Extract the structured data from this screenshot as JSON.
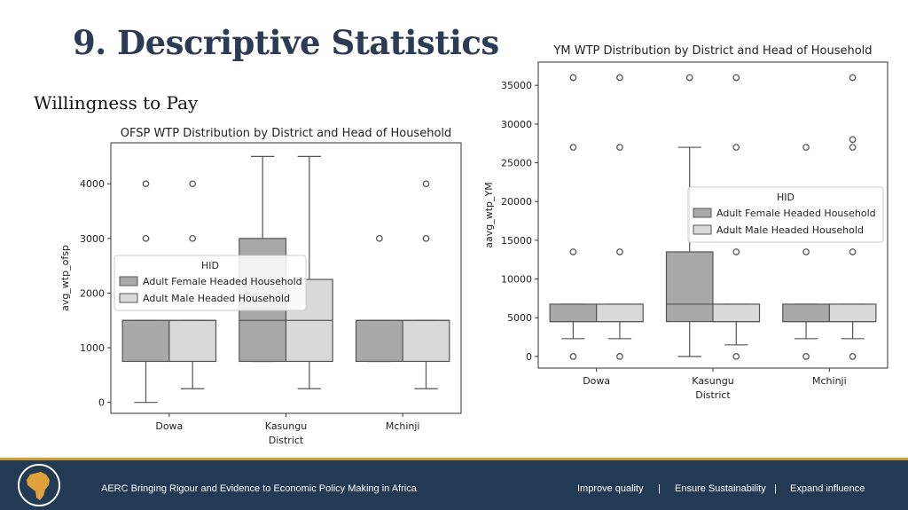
{
  "slide": {
    "title": "9. Descriptive Statistics",
    "subtitle": "Willingness to Pay"
  },
  "footer": {
    "logo_text": "AERC",
    "tagline": "AERC Bringing Rigour and Evidence to Economic Policy Making in Africa",
    "links": [
      "Improve quality",
      "|",
      "Ensure Sustainability",
      "|",
      "Expand influence"
    ]
  },
  "colors": {
    "female": "#a9a9a9",
    "male": "#d9d9d9",
    "footer_bg": "#233a55",
    "accent": "#d49a2f",
    "title": "#2b3a55"
  },
  "chart_data": [
    {
      "type": "box",
      "title": "OFSP WTP Distribution by District and Head of Household",
      "xlabel": "District",
      "ylabel": "avg_wtp_ofsp",
      "categories": [
        "Dowa",
        "Kasungu",
        "Mchinji"
      ],
      "ylim": [
        -200,
        4750
      ],
      "yticks": [
        0,
        1000,
        2000,
        3000,
        4000
      ],
      "legend": {
        "title": "HID",
        "position": "center-left"
      },
      "series": [
        {
          "name": "Adult Female Headed Household",
          "color": "#a9a9a9",
          "boxes": [
            {
              "whislo": 0,
              "q1": 750,
              "med": 1500,
              "q3": 1500,
              "whishi": 1500,
              "fliers": [
                3000,
                4000
              ]
            },
            {
              "whislo": 750,
              "q1": 750,
              "med": 1500,
              "q3": 3000,
              "whishi": 4500,
              "fliers": []
            },
            {
              "whislo": 750,
              "q1": 750,
              "med": 1500,
              "q3": 1500,
              "whishi": 1500,
              "fliers": [
                3000
              ]
            }
          ]
        },
        {
          "name": "Adult Male Headed Household",
          "color": "#d9d9d9",
          "boxes": [
            {
              "whislo": 250,
              "q1": 750,
              "med": 1500,
              "q3": 1500,
              "whishi": 1500,
              "fliers": [
                3000,
                4000
              ]
            },
            {
              "whislo": 250,
              "q1": 750,
              "med": 1500,
              "q3": 2250,
              "whishi": 4500,
              "fliers": []
            },
            {
              "whislo": 250,
              "q1": 750,
              "med": 1500,
              "q3": 1500,
              "whishi": 1500,
              "fliers": [
                3000,
                4000
              ]
            }
          ]
        }
      ]
    },
    {
      "type": "box",
      "title": "YM WTP Distribution by District and Head of Household",
      "xlabel": "District",
      "ylabel": "aavg_wtp_YM",
      "categories": [
        "Dowa",
        "Kasungu",
        "Mchinji"
      ],
      "ylim": [
        -1500,
        38000
      ],
      "yticks": [
        0,
        5000,
        10000,
        15000,
        20000,
        25000,
        30000,
        35000
      ],
      "legend": {
        "title": "HID",
        "position": "center-right"
      },
      "series": [
        {
          "name": "Adult Female Headed Household",
          "color": "#a9a9a9",
          "boxes": [
            {
              "whislo": 2300,
              "q1": 4500,
              "med": 4500,
              "q3": 6750,
              "whishi": 6750,
              "fliers": [
                0,
                13500,
                27000,
                36000
              ]
            },
            {
              "whislo": 0,
              "q1": 4500,
              "med": 6750,
              "q3": 13500,
              "whishi": 27000,
              "fliers": [
                36000
              ]
            },
            {
              "whislo": 2300,
              "q1": 4500,
              "med": 4500,
              "q3": 6750,
              "whishi": 6750,
              "fliers": [
                0,
                13500,
                27000
              ]
            }
          ]
        },
        {
          "name": "Adult Male Headed Household",
          "color": "#d9d9d9",
          "boxes": [
            {
              "whislo": 2300,
              "q1": 4500,
              "med": 4500,
              "q3": 6750,
              "whishi": 6750,
              "fliers": [
                0,
                13500,
                27000,
                36000
              ]
            },
            {
              "whislo": 1500,
              "q1": 4500,
              "med": 4500,
              "q3": 6750,
              "whishi": 6750,
              "fliers": [
                0,
                13500,
                27000,
                36000
              ]
            },
            {
              "whislo": 2300,
              "q1": 4500,
              "med": 4500,
              "q3": 6750,
              "whishi": 6750,
              "fliers": [
                0,
                13500,
                27000,
                28000,
                36000
              ]
            }
          ]
        }
      ]
    }
  ]
}
